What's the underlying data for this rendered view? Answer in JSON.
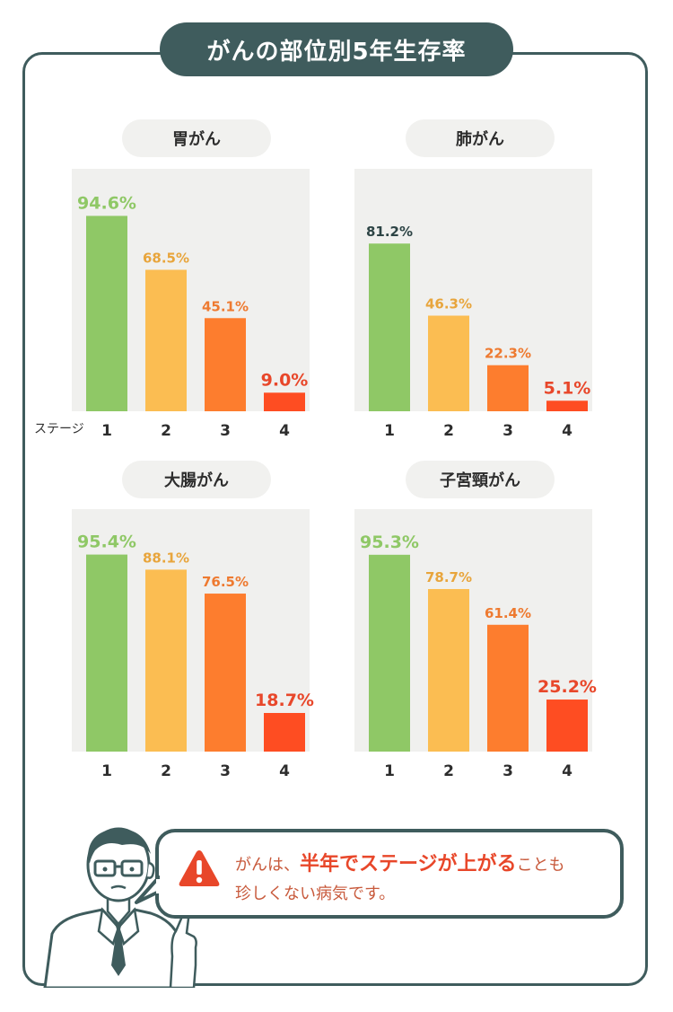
{
  "title": "がんの部位別5年生存率",
  "stage_axis_label": "ステージ",
  "colors": {
    "frame": "#3f5c5d",
    "stage1": "#8fc866",
    "stage2": "#fbbd52",
    "stage3": "#fd7d2e",
    "stage4": "#fe4d22",
    "plot_bg": "#f0f0ee"
  },
  "chart_data": [
    {
      "type": "bar",
      "title": "胃がん",
      "categories": [
        "1",
        "2",
        "3",
        "4"
      ],
      "values": [
        94.6,
        68.5,
        45.1,
        9.0
      ],
      "value_labels": [
        "94.6%",
        "68.5%",
        "45.1%",
        "9.0%"
      ],
      "ylim": [
        0,
        100
      ]
    },
    {
      "type": "bar",
      "title": "肺がん",
      "categories": [
        "1",
        "2",
        "3",
        "4"
      ],
      "values": [
        81.2,
        46.3,
        22.3,
        5.1
      ],
      "value_labels": [
        "81.2%",
        "46.3%",
        "22.3%",
        "5.1%"
      ],
      "ylim": [
        0,
        100
      ]
    },
    {
      "type": "bar",
      "title": "大腸がん",
      "categories": [
        "1",
        "2",
        "3",
        "4"
      ],
      "values": [
        95.4,
        88.1,
        76.5,
        18.7
      ],
      "value_labels": [
        "95.4%",
        "88.1%",
        "76.5%",
        "18.7%"
      ],
      "ylim": [
        0,
        100
      ]
    },
    {
      "type": "bar",
      "title": "子宮頸がん",
      "categories": [
        "1",
        "2",
        "3",
        "4"
      ],
      "values": [
        95.3,
        78.7,
        61.4,
        25.2
      ],
      "value_labels": [
        "95.3%",
        "78.7%",
        "61.4%",
        "25.2%"
      ],
      "ylim": [
        0,
        100
      ]
    }
  ],
  "callout": {
    "prefix": "がんは、",
    "emphasis": "半年でステージが上がる",
    "suffix_line1": "ことも",
    "line2": "珍しくない病気です。",
    "icon": "warning-triangle-icon"
  }
}
